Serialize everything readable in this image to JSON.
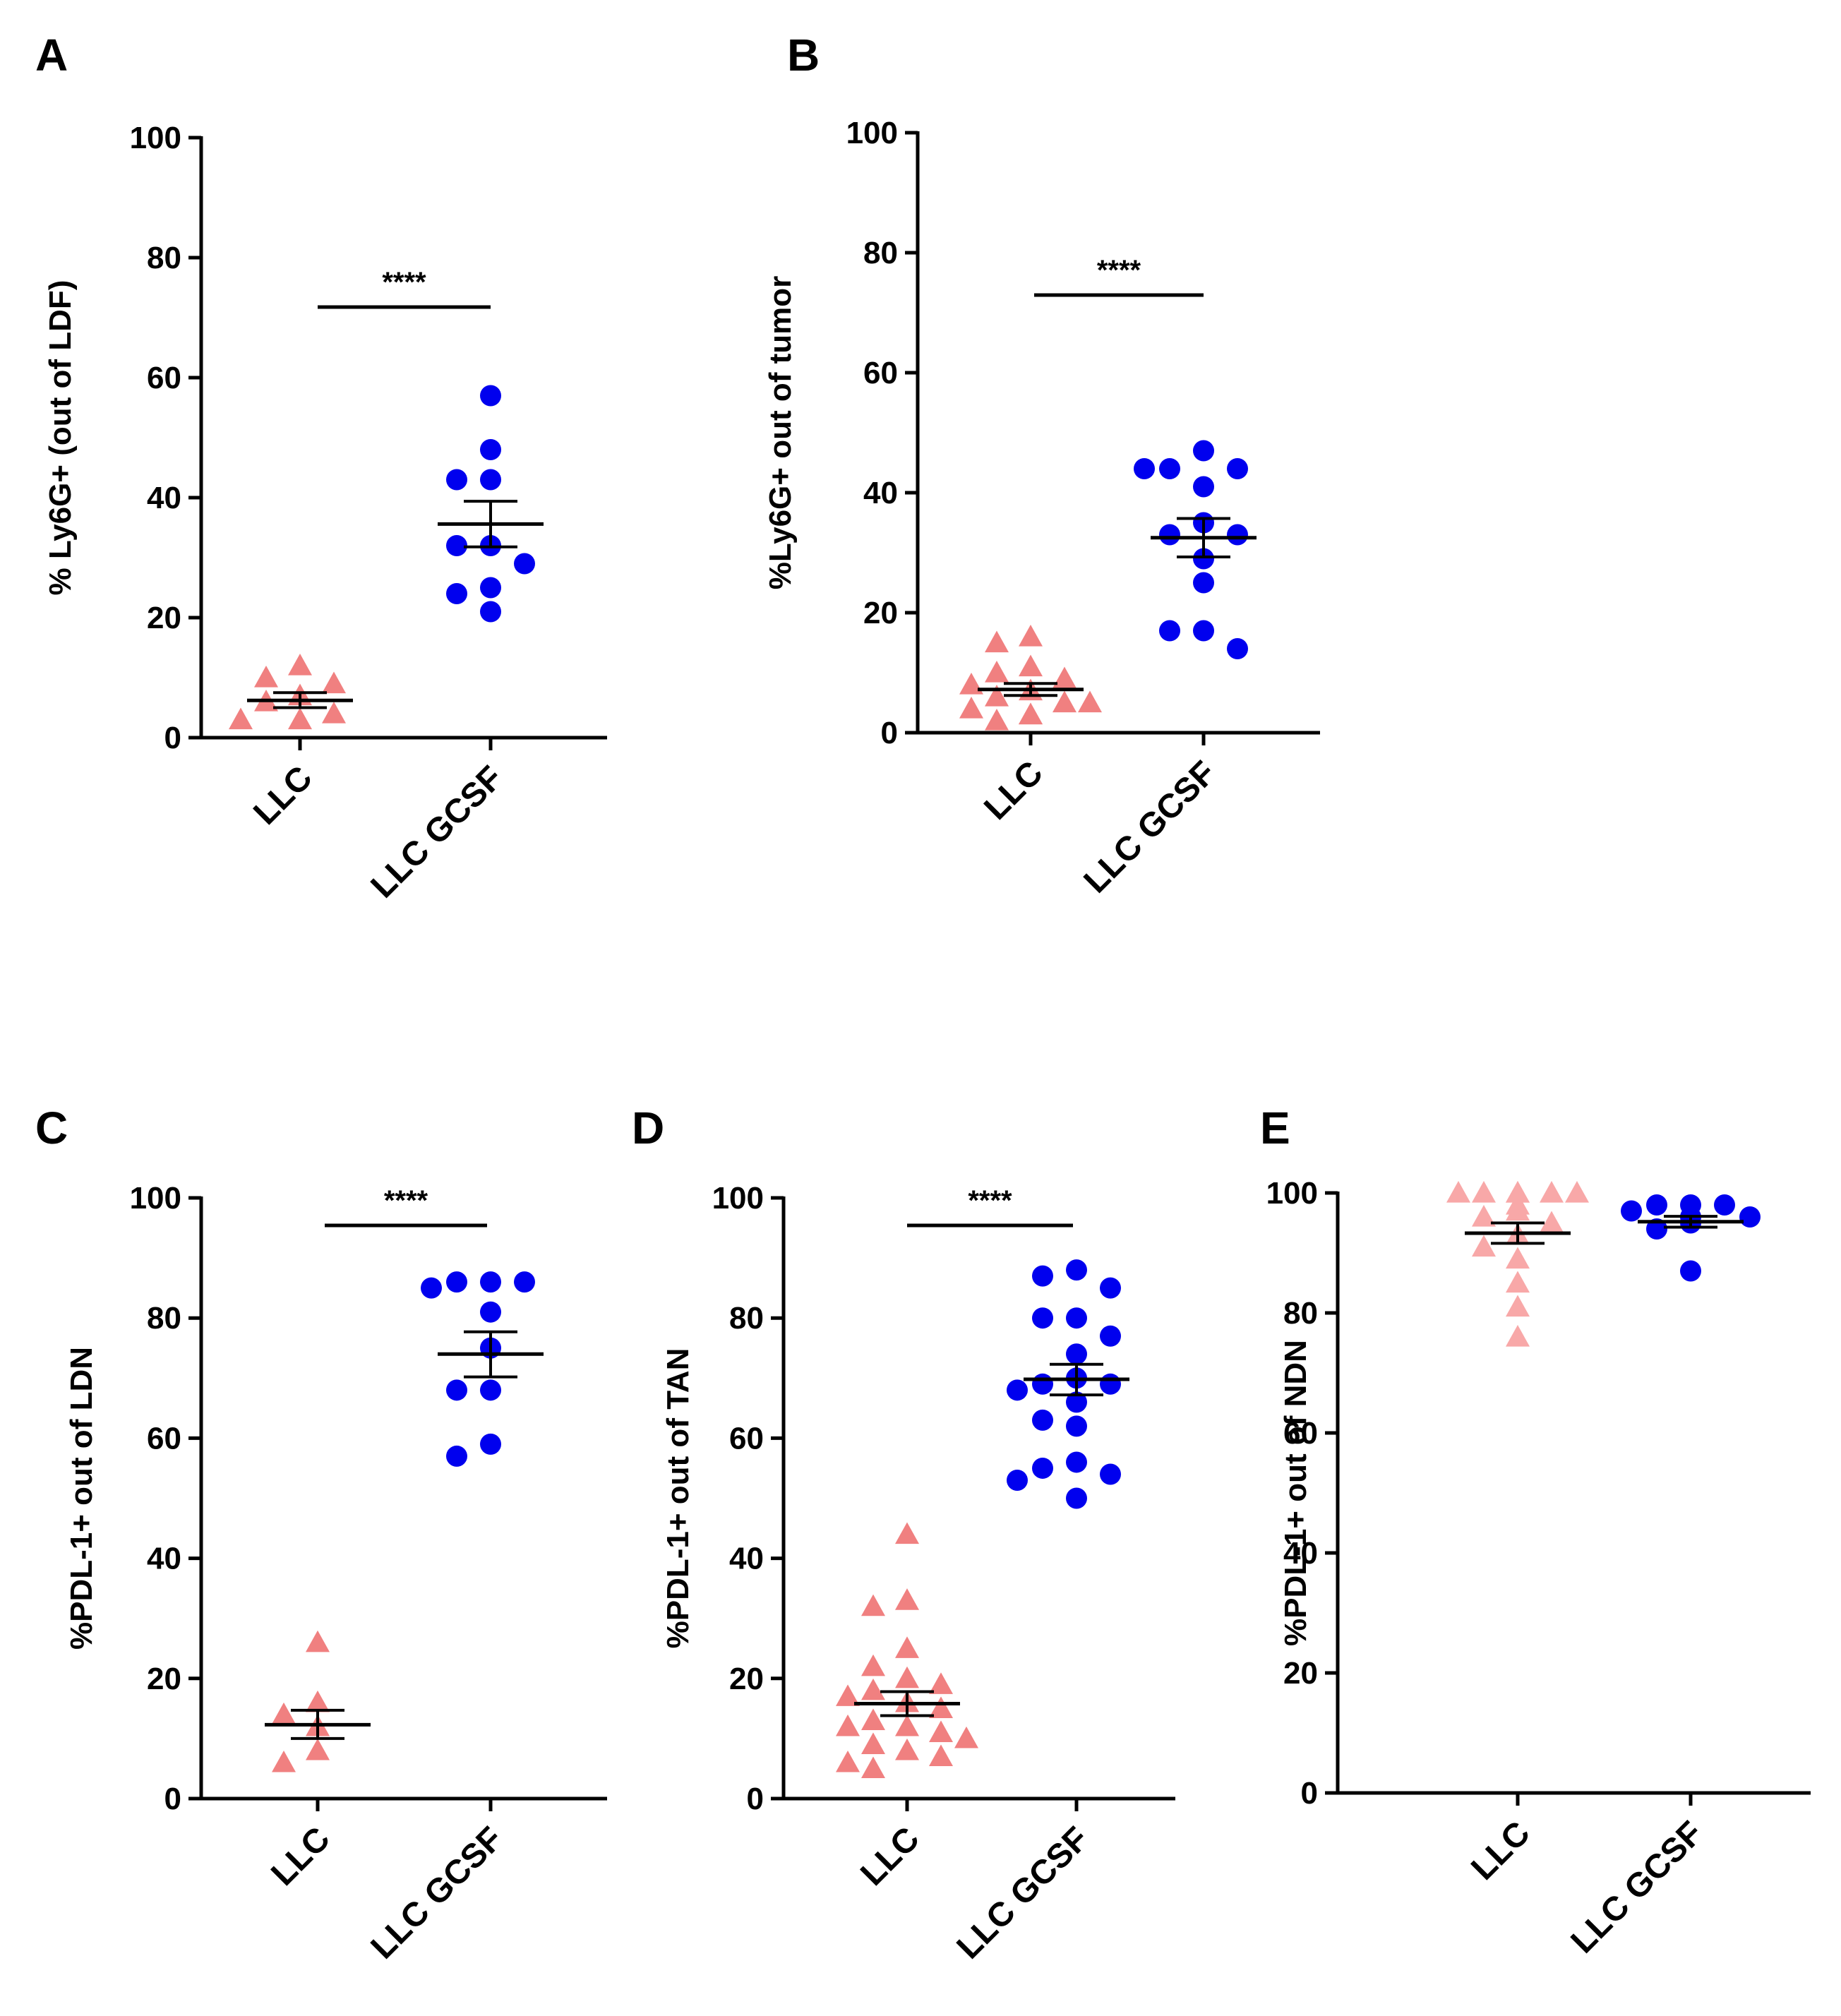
{
  "chart_data": [
    {
      "panel": "A",
      "type": "scatter",
      "ylabel": "% Ly6G+ (out of LDF)",
      "ylim": [
        0,
        100
      ],
      "yticks": [
        0,
        20,
        40,
        60,
        80,
        100
      ],
      "categories": [
        "LLC",
        "LLC GCSF"
      ],
      "significance": "****",
      "colors": {
        "LLC": "#f08080",
        "LLC GCSF": "#0000ee",
        "mean": "#000000"
      },
      "series": [
        {
          "name": "LLC",
          "marker": "triangle",
          "values": [
            12,
            10,
            9,
            7,
            6,
            4,
            3,
            3
          ],
          "mean": 6.2,
          "sem_low": 5.0,
          "sem_high": 7.5
        },
        {
          "name": "LLC GCSF",
          "marker": "circle",
          "values": [
            57,
            48,
            43,
            43,
            32,
            32,
            29,
            25,
            24,
            21
          ],
          "mean": 35.6,
          "sem_low": 31.8,
          "sem_high": 39.4
        }
      ]
    },
    {
      "panel": "B",
      "type": "scatter",
      "ylabel": "%Ly6G+ out of tumor",
      "ylim": [
        0,
        100
      ],
      "yticks": [
        0,
        20,
        40,
        60,
        80,
        100
      ],
      "categories": [
        "LLC",
        "LLC GCSF"
      ],
      "significance": "****",
      "colors": {
        "LLC": "#f08080",
        "LLC GCSF": "#0000ee",
        "mean": "#000000"
      },
      "series": [
        {
          "name": "LLC",
          "marker": "triangle",
          "values": [
            16,
            15,
            11,
            10,
            9,
            8,
            7,
            6,
            5,
            5,
            4,
            3,
            3,
            2
          ],
          "mean": 7.2,
          "sem_low": 6.2,
          "sem_high": 8.2
        },
        {
          "name": "LLC GCSF",
          "marker": "circle",
          "values": [
            47,
            44,
            44,
            44,
            41,
            35,
            33,
            33,
            29,
            25,
            17,
            17,
            14
          ],
          "mean": 32.5,
          "sem_low": 29.3,
          "sem_high": 35.7
        }
      ]
    },
    {
      "panel": "C",
      "type": "scatter",
      "ylabel": "%PDL-1+ out of LDN",
      "ylim": [
        0,
        100
      ],
      "yticks": [
        0,
        20,
        40,
        60,
        80,
        100
      ],
      "categories": [
        "LLC",
        "LLC GCSF"
      ],
      "significance": "****",
      "colors": {
        "LLC": "#f08080",
        "LLC GCSF": "#0000ee",
        "mean": "#000000"
      },
      "series": [
        {
          "name": "LLC",
          "marker": "triangle",
          "values": [
            26,
            16,
            14,
            12,
            8,
            6
          ],
          "mean": 12.3,
          "sem_low": 10.0,
          "sem_high": 14.7
        },
        {
          "name": "LLC GCSF",
          "marker": "circle",
          "values": [
            86,
            86,
            86,
            85,
            81,
            75,
            68,
            68,
            59,
            57
          ],
          "mean": 74.0,
          "sem_low": 70.2,
          "sem_high": 77.7
        }
      ]
    },
    {
      "panel": "D",
      "type": "scatter",
      "ylabel": "%PDL-1+ out of TAN",
      "ylim": [
        0,
        100
      ],
      "yticks": [
        0,
        20,
        40,
        60,
        80,
        100
      ],
      "categories": [
        "LLC",
        "LLC GCSF"
      ],
      "significance": "****",
      "colors": {
        "LLC": "#f08080",
        "LLC GCSF": "#0000ee",
        "mean": "#000000"
      },
      "series": [
        {
          "name": "LLC",
          "marker": "triangle",
          "values": [
            44,
            33,
            32,
            25,
            22,
            20,
            19,
            18,
            17,
            16,
            15,
            13,
            12,
            12,
            11,
            10,
            9,
            8,
            7,
            6,
            5
          ],
          "mean": 15.8,
          "sem_low": 13.8,
          "sem_high": 17.8
        },
        {
          "name": "LLC GCSF",
          "marker": "circle",
          "values": [
            88,
            87,
            85,
            80,
            80,
            77,
            74,
            70,
            69,
            69,
            68,
            66,
            63,
            62,
            56,
            55,
            54,
            53,
            50
          ],
          "mean": 69.8,
          "sem_low": 67.2,
          "sem_high": 72.3
        }
      ]
    },
    {
      "panel": "E",
      "type": "scatter",
      "ylabel": "%PDL-1+ out of NDN",
      "ylim": [
        0,
        100
      ],
      "yticks": [
        0,
        20,
        40,
        60,
        80,
        100
      ],
      "categories": [
        "LLC",
        "LLC GCSF"
      ],
      "significance": "",
      "colors": {
        "LLC": "#f8a8a8",
        "LLC GCSF": "#0000ee",
        "mean": "#000000"
      },
      "series": [
        {
          "name": "LLC",
          "marker": "triangle",
          "values": [
            100,
            100,
            100,
            100,
            100,
            100,
            98,
            97,
            96,
            95,
            93,
            91,
            89,
            85,
            81,
            76
          ],
          "mean": 93.3,
          "sem_low": 91.6,
          "sem_high": 95.0
        },
        {
          "name": "LLC GCSF",
          "marker": "circle",
          "values": [
            98,
            98,
            98,
            97,
            96,
            96,
            95,
            94,
            87
          ],
          "mean": 95.2,
          "sem_low": 94.3,
          "sem_high": 96.1
        }
      ]
    }
  ]
}
